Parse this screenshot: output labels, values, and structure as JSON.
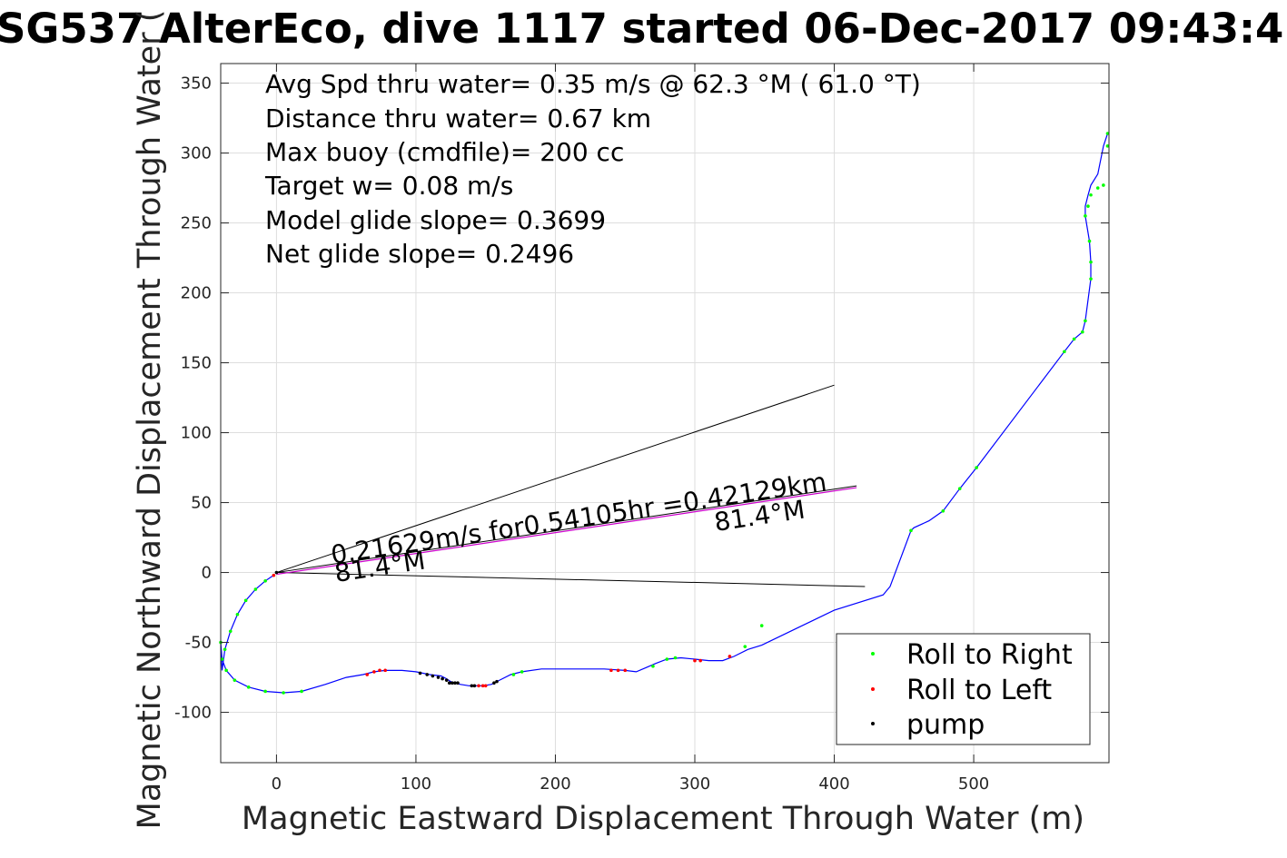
{
  "chart_data": {
    "type": "line",
    "title": "SG537 AlterEco, dive 1117 started 06-Dec-2017 09:43:4",
    "xlabel": "Magnetic Eastward Displacement Through Water (m)",
    "ylabel": "Magnetic Northward Displacement Through Water (",
    "xlim": [
      -40,
      597
    ],
    "ylim": [
      -136,
      364
    ],
    "xticks": [
      0,
      100,
      200,
      300,
      400,
      500
    ],
    "xtick_labels": [
      "0",
      "100",
      "200",
      "300",
      "400",
      "500"
    ],
    "yticks": [
      350,
      300,
      250,
      200,
      150,
      100,
      50,
      0,
      -50,
      -100
    ],
    "ytick_labels": [
      "350",
      "300",
      "250",
      "200",
      "150",
      "100",
      "50",
      "0",
      "-50",
      "-100"
    ],
    "grid": true,
    "legend_position": "bottom-right",
    "annotations": [
      "Avg Spd thru water=  0.35 m/s @  62.3 °M ( 61.0 °T)",
      "Distance thru water=  0.67 km",
      "Max buoy (cmdfile)= 200 cc",
      "Target w= 0.08 m/s",
      "Model glide slope= 0.3699",
      "Net glide slope= 0.2496"
    ],
    "line_annotations": {
      "current_text": "0.21629m/s for0.54105hr =0.42129km",
      "heading_near": "81.4°M",
      "heading_far": "81.4°M"
    },
    "series": [
      {
        "name": "track",
        "color": "#0000ff",
        "x": [
          -2,
          -8,
          -15,
          -22,
          -28,
          -33,
          -37,
          -39,
          -40,
          -39,
          -36,
          -30,
          -20,
          -8,
          5,
          18,
          35,
          50,
          62,
          70,
          78,
          90,
          100,
          110,
          118,
          122,
          125,
          128,
          132,
          138,
          143,
          148,
          154,
          160,
          168,
          176,
          190,
          205,
          220,
          235,
          250,
          258,
          265,
          272,
          280,
          290,
          300,
          310,
          320,
          328,
          338,
          348,
          400,
          435,
          440,
          455,
          457,
          468,
          478,
          490,
          502,
          565,
          572,
          578,
          580,
          584,
          584,
          583,
          580,
          580,
          582,
          584,
          589,
          593,
          596
        ],
        "y": [
          -2,
          -6,
          -12,
          -20,
          -30,
          -42,
          -55,
          -70,
          -50,
          -62,
          -70,
          -77,
          -82,
          -85,
          -86,
          -85,
          -80,
          -75,
          -73,
          -71,
          -70,
          -70,
          -71,
          -73,
          -74,
          -76,
          -78,
          -79,
          -80,
          -81,
          -81,
          -81,
          -80,
          -77,
          -73,
          -71,
          -69,
          -69,
          -69,
          -69,
          -70,
          -71,
          -68,
          -65,
          -62,
          -61,
          -62,
          -63,
          -63,
          -60,
          -55,
          -52,
          -27,
          -16,
          -10,
          30,
          32,
          37,
          44,
          60,
          75,
          158,
          167,
          172,
          180,
          210,
          222,
          237,
          255,
          262,
          270,
          277,
          285,
          305,
          314
        ]
      },
      {
        "name": "Roll to Right",
        "color": "#00ff00",
        "marker": "dot"
      },
      {
        "name": "Roll to Left",
        "color": "#ff0000",
        "marker": "dot"
      },
      {
        "name": "pump",
        "color": "#000000",
        "marker": "dot"
      }
    ],
    "points": {
      "roll_right": [
        [
          -8,
          -6
        ],
        [
          -15,
          -12
        ],
        [
          -22,
          -20
        ],
        [
          -28,
          -30
        ],
        [
          -33,
          -42
        ],
        [
          -37,
          -55
        ],
        [
          -39,
          -62
        ],
        [
          -40,
          -50
        ],
        [
          -36,
          -70
        ],
        [
          -30,
          -77
        ],
        [
          -20,
          -82
        ],
        [
          -8,
          -85
        ],
        [
          5,
          -86
        ],
        [
          18,
          -85
        ],
        [
          170,
          -73
        ],
        [
          176,
          -71
        ],
        [
          270,
          -67
        ],
        [
          280,
          -62
        ],
        [
          286,
          -61
        ],
        [
          336,
          -53
        ],
        [
          348,
          -38
        ],
        [
          455,
          30
        ],
        [
          478,
          44
        ],
        [
          490,
          60
        ],
        [
          502,
          75
        ],
        [
          565,
          158
        ],
        [
          572,
          167
        ],
        [
          578,
          172
        ],
        [
          580,
          180
        ],
        [
          584,
          210
        ],
        [
          584,
          222
        ],
        [
          583,
          237
        ],
        [
          580,
          255
        ],
        [
          582,
          262
        ],
        [
          584,
          270
        ],
        [
          589,
          275
        ],
        [
          593,
          277
        ],
        [
          596,
          305
        ],
        [
          596,
          314
        ]
      ],
      "roll_left": [
        [
          -2,
          -2
        ],
        [
          65,
          -73
        ],
        [
          70,
          -71
        ],
        [
          74,
          -70
        ],
        [
          78,
          -70
        ],
        [
          145,
          -81
        ],
        [
          148,
          -81
        ],
        [
          150,
          -81
        ],
        [
          240,
          -70
        ],
        [
          245,
          -70
        ],
        [
          250,
          -70
        ],
        [
          300,
          -63
        ],
        [
          304,
          -63
        ],
        [
          325,
          -60
        ]
      ],
      "pump": [
        [
          0,
          0
        ],
        [
          103,
          -72
        ],
        [
          108,
          -73
        ],
        [
          112,
          -74
        ],
        [
          116,
          -75
        ],
        [
          119,
          -76
        ],
        [
          122,
          -77
        ],
        [
          124,
          -79
        ],
        [
          126,
          -79
        ],
        [
          128,
          -79
        ],
        [
          130,
          -79
        ],
        [
          140,
          -81
        ],
        [
          142,
          -81
        ],
        [
          156,
          -79
        ],
        [
          158,
          -78
        ]
      ]
    },
    "reference_lines": [
      {
        "name": "upper-direction-line",
        "x": [
          0,
          400
        ],
        "y": [
          0,
          134
        ]
      },
      {
        "name": "lower-direction-line",
        "x": [
          0,
          422
        ],
        "y": [
          0,
          -10
        ]
      },
      {
        "name": "current-vector-line",
        "x": [
          0,
          416
        ],
        "y": [
          0,
          62
        ]
      }
    ]
  }
}
